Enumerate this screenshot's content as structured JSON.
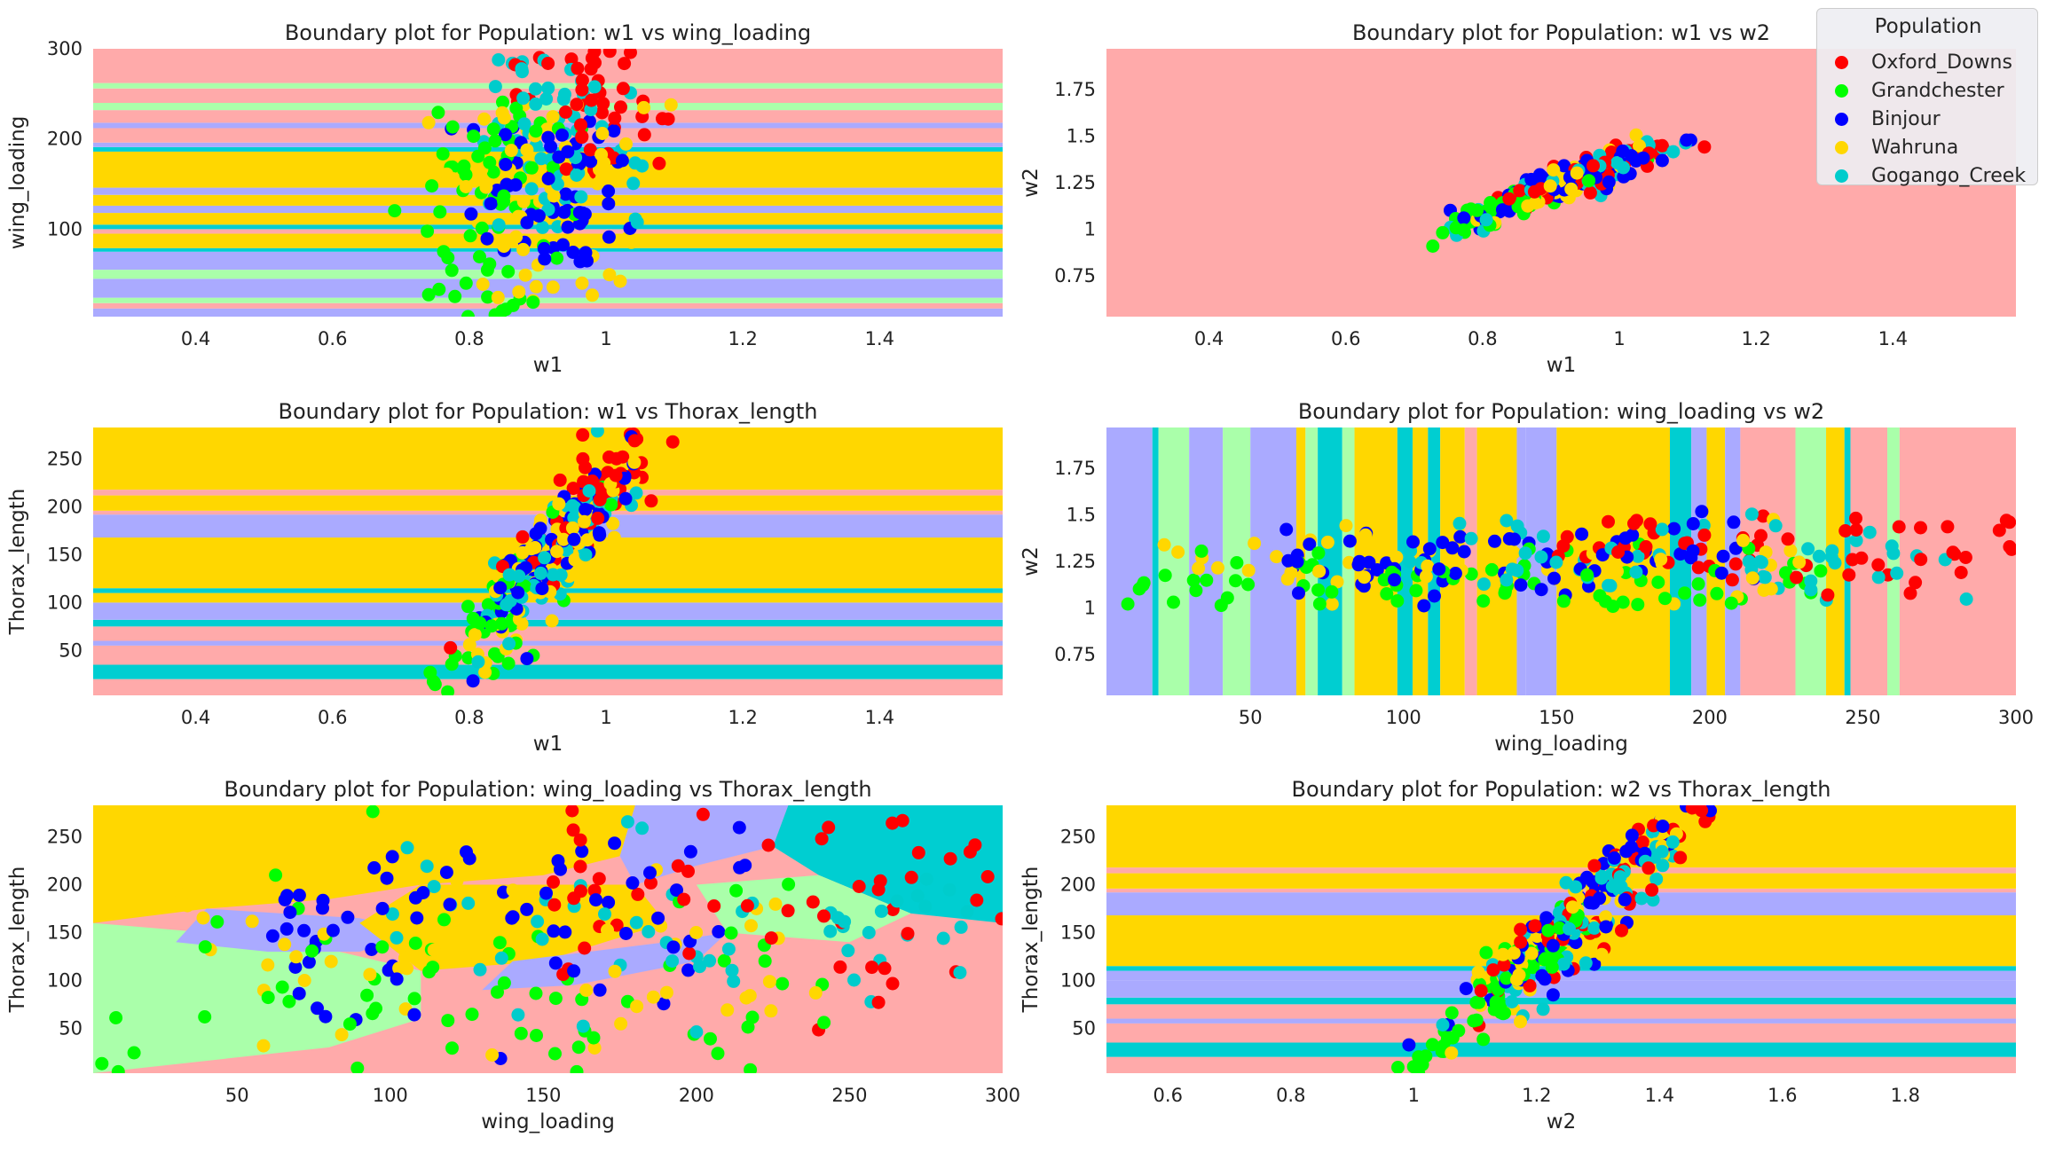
{
  "legend": {
    "title": "Population",
    "items": [
      {
        "label": "Oxford_Downs",
        "color": "#ff0000"
      },
      {
        "label": "Grandchester",
        "color": "#00ff00"
      },
      {
        "label": "Binjour",
        "color": "#0000ff"
      },
      {
        "label": "Wahruna",
        "color": "#ffd700"
      },
      {
        "label": "Gogango_Creek",
        "color": "#00cccc"
      }
    ]
  },
  "region_colors": {
    "Oxford_Downs": "#ffaaaa",
    "Grandchester": "#aaffaa",
    "Binjour": "#aaaaff",
    "Wahruna": "#ffd700",
    "Gogango_Creek": "#00ced1"
  },
  "chart_data": [
    {
      "type": "scatter",
      "title": "Boundary plot for Population: w1 vs wing_loading",
      "xlabel": "w1",
      "ylabel": "wing_loading",
      "xlim": [
        0.25,
        1.58
      ],
      "ylim": [
        3,
        300
      ],
      "xticks": [
        0.4,
        0.6,
        0.8,
        1.0,
        1.2,
        1.4
      ],
      "yticks": [
        100,
        200,
        300
      ],
      "boundary": {
        "orientation": "horizontal",
        "bands": [
          {
            "from": 3,
            "to": 12,
            "class": "Binjour"
          },
          {
            "from": 12,
            "to": 18,
            "class": "Oxford_Downs"
          },
          {
            "from": 18,
            "to": 24,
            "class": "Grandchester"
          },
          {
            "from": 24,
            "to": 45,
            "class": "Binjour"
          },
          {
            "from": 45,
            "to": 55,
            "class": "Grandchester"
          },
          {
            "from": 55,
            "to": 75,
            "class": "Binjour"
          },
          {
            "from": 75,
            "to": 79,
            "class": "Gogango_Creek"
          },
          {
            "from": 79,
            "to": 95,
            "class": "Wahruna"
          },
          {
            "from": 95,
            "to": 100,
            "class": "Oxford_Downs"
          },
          {
            "from": 100,
            "to": 105,
            "class": "Gogango_Creek"
          },
          {
            "from": 105,
            "to": 118,
            "class": "Wahruna"
          },
          {
            "from": 118,
            "to": 126,
            "class": "Binjour"
          },
          {
            "from": 126,
            "to": 138,
            "class": "Wahruna"
          },
          {
            "from": 138,
            "to": 146,
            "class": "Binjour"
          },
          {
            "from": 146,
            "to": 186,
            "class": "Wahruna"
          },
          {
            "from": 186,
            "to": 191,
            "class": "Gogango_Creek"
          },
          {
            "from": 191,
            "to": 196,
            "class": "Binjour"
          },
          {
            "from": 196,
            "to": 212,
            "class": "Oxford_Downs"
          },
          {
            "from": 212,
            "to": 218,
            "class": "Binjour"
          },
          {
            "from": 218,
            "to": 232,
            "class": "Oxford_Downs"
          },
          {
            "from": 232,
            "to": 240,
            "class": "Grandchester"
          },
          {
            "from": 240,
            "to": 256,
            "class": "Oxford_Downs"
          },
          {
            "from": 256,
            "to": 262,
            "class": "Grandchester"
          },
          {
            "from": 262,
            "to": 300,
            "class": "Oxford_Downs"
          }
        ]
      },
      "points_seed": 11
    },
    {
      "type": "scatter",
      "title": "Boundary plot for Population: w1 vs w2",
      "xlabel": "w1",
      "ylabel": "w2",
      "xlim": [
        0.25,
        1.58
      ],
      "ylim": [
        0.53,
        1.97
      ],
      "xticks": [
        0.4,
        0.6,
        0.8,
        1.0,
        1.2,
        1.4
      ],
      "yticks": [
        0.75,
        1.0,
        1.25,
        1.5,
        1.75
      ],
      "boundary": {
        "orientation": "horizontal",
        "bands": [
          {
            "from": 0.53,
            "to": 1.97,
            "class": "Oxford_Downs"
          }
        ]
      },
      "points_seed": 23
    },
    {
      "type": "scatter",
      "title": "Boundary plot for Population: w1 vs Thorax_length",
      "xlabel": "w1",
      "ylabel": "Thorax_length",
      "xlim": [
        0.25,
        1.58
      ],
      "ylim": [
        3,
        283
      ],
      "xticks": [
        0.4,
        0.6,
        0.8,
        1.0,
        1.2,
        1.4
      ],
      "yticks": [
        50,
        100,
        150,
        200,
        250
      ],
      "boundary": {
        "orientation": "horizontal",
        "bands": [
          {
            "from": 3,
            "to": 20,
            "class": "Oxford_Downs"
          },
          {
            "from": 20,
            "to": 35,
            "class": "Gogango_Creek"
          },
          {
            "from": 35,
            "to": 55,
            "class": "Oxford_Downs"
          },
          {
            "from": 55,
            "to": 60,
            "class": "Binjour"
          },
          {
            "from": 60,
            "to": 75,
            "class": "Oxford_Downs"
          },
          {
            "from": 75,
            "to": 82,
            "class": "Gogango_Creek"
          },
          {
            "from": 82,
            "to": 100,
            "class": "Binjour"
          },
          {
            "from": 100,
            "to": 110,
            "class": "Wahruna"
          },
          {
            "from": 110,
            "to": 115,
            "class": "Gogango_Creek"
          },
          {
            "from": 115,
            "to": 168,
            "class": "Wahruna"
          },
          {
            "from": 168,
            "to": 192,
            "class": "Binjour"
          },
          {
            "from": 192,
            "to": 196,
            "class": "Oxford_Downs"
          },
          {
            "from": 196,
            "to": 212,
            "class": "Wahruna"
          },
          {
            "from": 212,
            "to": 218,
            "class": "Oxford_Downs"
          },
          {
            "from": 218,
            "to": 283,
            "class": "Wahruna"
          }
        ]
      },
      "points_seed": 37
    },
    {
      "type": "scatter",
      "title": "Boundary plot for Population: wing_loading vs w2",
      "xlabel": "wing_loading",
      "ylabel": "w2",
      "xlim": [
        3,
        300
      ],
      "ylim": [
        0.53,
        1.97
      ],
      "xticks": [
        50,
        100,
        150,
        200,
        250,
        300
      ],
      "yticks": [
        0.75,
        1.0,
        1.25,
        1.5,
        1.75
      ],
      "boundary": {
        "orientation": "vertical",
        "bands": [
          {
            "from": 3,
            "to": 18,
            "class": "Binjour"
          },
          {
            "from": 18,
            "to": 20,
            "class": "Gogango_Creek"
          },
          {
            "from": 20,
            "to": 30,
            "class": "Grandchester"
          },
          {
            "from": 30,
            "to": 41,
            "class": "Binjour"
          },
          {
            "from": 41,
            "to": 50,
            "class": "Grandchester"
          },
          {
            "from": 50,
            "to": 65,
            "class": "Binjour"
          },
          {
            "from": 65,
            "to": 68,
            "class": "Wahruna"
          },
          {
            "from": 68,
            "to": 72,
            "class": "Grandchester"
          },
          {
            "from": 72,
            "to": 80,
            "class": "Gogango_Creek"
          },
          {
            "from": 80,
            "to": 84,
            "class": "Grandchester"
          },
          {
            "from": 84,
            "to": 98,
            "class": "Wahruna"
          },
          {
            "from": 98,
            "to": 103,
            "class": "Gogango_Creek"
          },
          {
            "from": 103,
            "to": 108,
            "class": "Wahruna"
          },
          {
            "from": 108,
            "to": 112,
            "class": "Gogango_Creek"
          },
          {
            "from": 112,
            "to": 120,
            "class": "Wahruna"
          },
          {
            "from": 120,
            "to": 124,
            "class": "Oxford_Downs"
          },
          {
            "from": 124,
            "to": 137,
            "class": "Wahruna"
          },
          {
            "from": 137,
            "to": 140,
            "class": "Binjour"
          },
          {
            "from": 140,
            "to": 150,
            "class": "Binjour"
          },
          {
            "from": 150,
            "to": 187,
            "class": "Wahruna"
          },
          {
            "from": 187,
            "to": 194,
            "class": "Gogango_Creek"
          },
          {
            "from": 194,
            "to": 199,
            "class": "Binjour"
          },
          {
            "from": 199,
            "to": 205,
            "class": "Wahruna"
          },
          {
            "from": 205,
            "to": 210,
            "class": "Binjour"
          },
          {
            "from": 210,
            "to": 228,
            "class": "Oxford_Downs"
          },
          {
            "from": 228,
            "to": 238,
            "class": "Grandchester"
          },
          {
            "from": 238,
            "to": 244,
            "class": "Wahruna"
          },
          {
            "from": 244,
            "to": 246,
            "class": "Gogango_Creek"
          },
          {
            "from": 246,
            "to": 258,
            "class": "Oxford_Downs"
          },
          {
            "from": 258,
            "to": 262,
            "class": "Grandchester"
          },
          {
            "from": 262,
            "to": 300,
            "class": "Oxford_Downs"
          }
        ]
      },
      "points_seed": 53
    },
    {
      "type": "scatter",
      "title": "Boundary plot for Population: wing_loading vs Thorax_length",
      "xlabel": "wing_loading",
      "ylabel": "Thorax_length",
      "xlim": [
        3,
        300
      ],
      "ylim": [
        3,
        283
      ],
      "xticks": [
        50,
        100,
        150,
        200,
        250,
        300
      ],
      "yticks": [
        50,
        100,
        150,
        200,
        250
      ],
      "boundary": {
        "orientation": "regions",
        "regions": [
          {
            "class": "Oxford_Downs",
            "polygon": [
              [
                3,
                3
              ],
              [
                300,
                3
              ],
              [
                300,
                283
              ],
              [
                3,
                283
              ]
            ]
          },
          {
            "class": "Wahruna",
            "polygon": [
              [
                3,
                283
              ],
              [
                180,
                283
              ],
              [
                175,
                230
              ],
              [
                150,
                210
              ],
              [
                110,
                200
              ],
              [
                80,
                185
              ],
              [
                40,
                175
              ],
              [
                3,
                160
              ]
            ]
          },
          {
            "class": "Grandchester",
            "polygon": [
              [
                3,
                160
              ],
              [
                40,
                150
              ],
              [
                70,
                140
              ],
              [
                110,
                110
              ],
              [
                110,
                60
              ],
              [
                80,
                30
              ],
              [
                3,
                3
              ]
            ]
          },
          {
            "class": "Binjour",
            "polygon": [
              [
                40,
                175
              ],
              [
                90,
                165
              ],
              [
                110,
                150
              ],
              [
                90,
                130
              ],
              [
                60,
                130
              ],
              [
                30,
                140
              ]
            ]
          },
          {
            "class": "Wahruna",
            "polygon": [
              [
                110,
                200
              ],
              [
                180,
                200
              ],
              [
                190,
                160
              ],
              [
                150,
                120
              ],
              [
                110,
                110
              ],
              [
                90,
                160
              ]
            ]
          },
          {
            "class": "Binjour",
            "polygon": [
              [
                180,
                283
              ],
              [
                230,
                283
              ],
              [
                225,
                240
              ],
              [
                200,
                220
              ],
              [
                180,
                200
              ],
              [
                175,
                230
              ]
            ]
          },
          {
            "class": "Gogango_Creek",
            "polygon": [
              [
                230,
                283
              ],
              [
                300,
                283
              ],
              [
                300,
                160
              ],
              [
                270,
                170
              ],
              [
                240,
                210
              ],
              [
                225,
                240
              ]
            ]
          },
          {
            "class": "Grandchester",
            "polygon": [
              [
                200,
                200
              ],
              [
                240,
                210
              ],
              [
                270,
                170
              ],
              [
                250,
                140
              ],
              [
                210,
                150
              ]
            ]
          },
          {
            "class": "Binjour",
            "polygon": [
              [
                140,
                120
              ],
              [
                190,
                140
              ],
              [
                210,
                150
              ],
              [
                200,
                120
              ],
              [
                160,
                95
              ],
              [
                130,
                90
              ]
            ]
          }
        ]
      },
      "points_seed": 71
    },
    {
      "type": "scatter",
      "title": "Boundary plot for Population: w2 vs Thorax_length",
      "xlabel": "w2",
      "ylabel": "Thorax_length",
      "xlim": [
        0.5,
        1.98
      ],
      "ylim": [
        3,
        283
      ],
      "xticks": [
        0.6,
        0.8,
        1.0,
        1.2,
        1.4,
        1.6,
        1.8
      ],
      "yticks": [
        50,
        100,
        150,
        200,
        250
      ],
      "boundary": {
        "orientation": "horizontal",
        "bands": [
          {
            "from": 3,
            "to": 20,
            "class": "Oxford_Downs"
          },
          {
            "from": 20,
            "to": 35,
            "class": "Gogango_Creek"
          },
          {
            "from": 35,
            "to": 55,
            "class": "Oxford_Downs"
          },
          {
            "from": 55,
            "to": 60,
            "class": "Binjour"
          },
          {
            "from": 60,
            "to": 75,
            "class": "Oxford_Downs"
          },
          {
            "from": 75,
            "to": 82,
            "class": "Gogango_Creek"
          },
          {
            "from": 82,
            "to": 100,
            "class": "Binjour"
          },
          {
            "from": 100,
            "to": 110,
            "class": "Binjour"
          },
          {
            "from": 110,
            "to": 115,
            "class": "Gogango_Creek"
          },
          {
            "from": 115,
            "to": 168,
            "class": "Wahruna"
          },
          {
            "from": 168,
            "to": 192,
            "class": "Binjour"
          },
          {
            "from": 192,
            "to": 196,
            "class": "Oxford_Downs"
          },
          {
            "from": 196,
            "to": 212,
            "class": "Wahruna"
          },
          {
            "from": 212,
            "to": 218,
            "class": "Oxford_Downs"
          },
          {
            "from": 218,
            "to": 283,
            "class": "Wahruna"
          }
        ]
      },
      "points_seed": 89
    }
  ]
}
